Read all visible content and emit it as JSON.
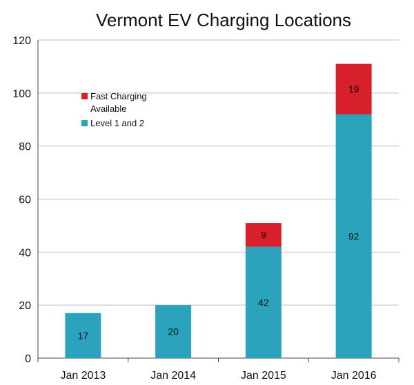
{
  "chart_data": {
    "type": "bar",
    "stacked": true,
    "title": "Vermont EV Charging Locations",
    "xlabel": "",
    "ylabel": "",
    "categories": [
      "Jan 2013",
      "Jan 2014",
      "Jan 2015",
      "Jan 2016"
    ],
    "series": [
      {
        "name": "Level 1 and 2",
        "color": "#2ba3bd",
        "values": [
          17,
          20,
          42,
          92
        ]
      },
      {
        "name": "Fast Charging Available",
        "color": "#d7202b",
        "values": [
          0,
          0,
          9,
          19
        ]
      }
    ],
    "ylim": [
      0,
      120
    ],
    "yticks": [
      0,
      20,
      40,
      60,
      80,
      100,
      120
    ],
    "grid": true,
    "legend_position": "top-left",
    "legend_lines": [
      [
        "Fast Charging",
        "Available"
      ],
      [
        "Level 1 and 2"
      ]
    ]
  }
}
